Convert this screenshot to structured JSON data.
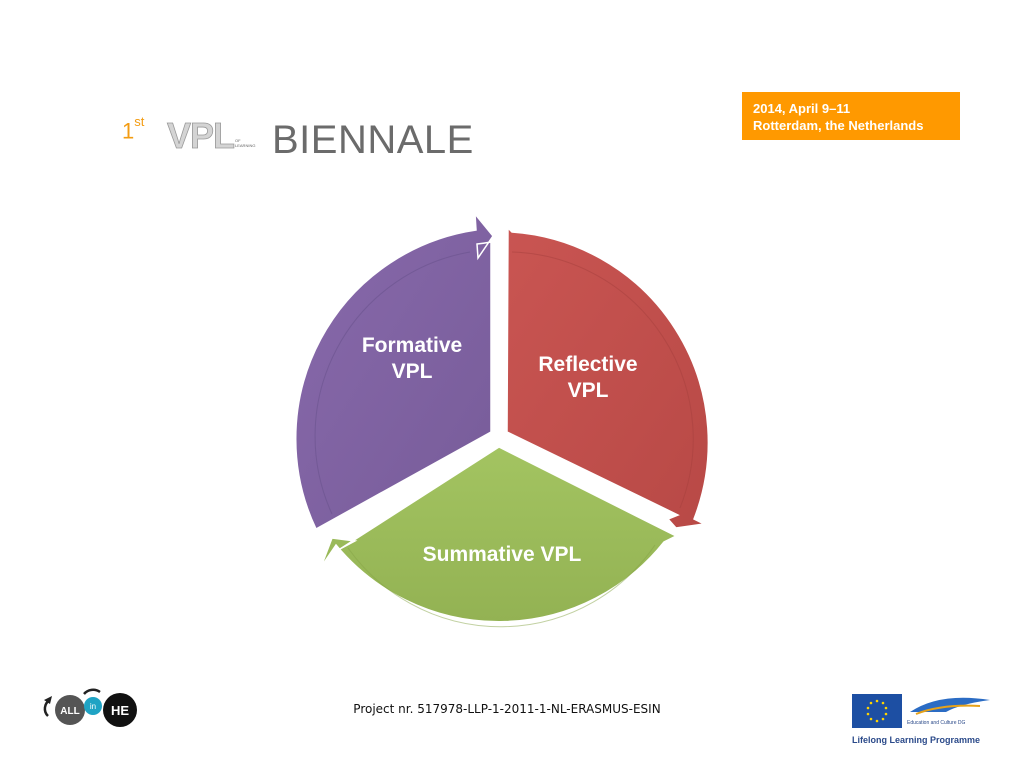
{
  "header": {
    "ordinal": "1",
    "ordinal_suffix": "st",
    "logo_text": "VPL",
    "logo_subtext_1": "OF",
    "logo_subtext_2": "LEARNING",
    "title": "BIENNALE",
    "date_line_1": "2014, April 9–11",
    "date_line_2": "Rotterdam, the Netherlands"
  },
  "cycle": {
    "segments": [
      {
        "label_line_1": "Reflective",
        "label_line_2": "VPL",
        "color": "#c0504d"
      },
      {
        "label_line_1": "Summative VPL",
        "label_line_2": "",
        "color": "#9bbb59"
      },
      {
        "label_line_1": "Formative",
        "label_line_2": "VPL",
        "color": "#8064a2"
      }
    ]
  },
  "footer": {
    "left_logo": {
      "word_1": "ALL",
      "word_2": "in",
      "word_3": "HE"
    },
    "project": "Project nr. 517978-LLP-1-2011-1-NL-ERASMUS-ESIN",
    "right_logo": {
      "dg_text": "Education and Culture DG",
      "programme": "Lifelong Learning Programme",
      "eu_flag_color": "#1d4fa3",
      "star_color": "#ffd400"
    }
  },
  "colors": {
    "accent_orange": "#ff9900",
    "ordinal_orange": "#f39c12",
    "title_gray": "#6b6b6b"
  }
}
